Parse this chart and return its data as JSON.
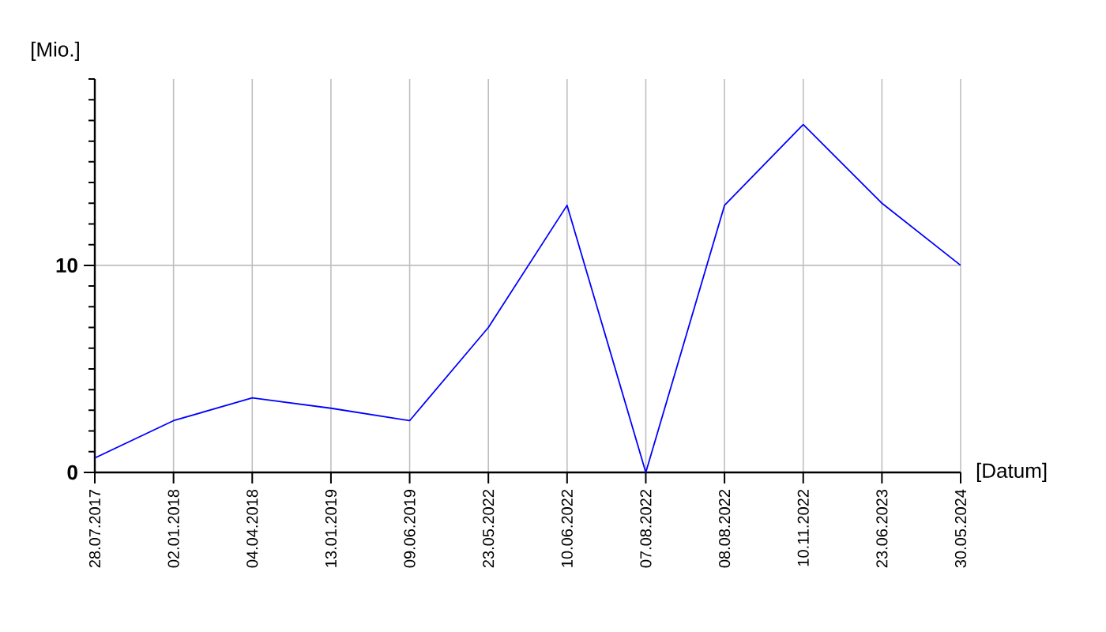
{
  "chart_data": {
    "type": "line",
    "xlabel": "[Datum]",
    "ylabel": "[Mio.]",
    "categories": [
      "28.07.2017",
      "02.01.2018",
      "04.04.2018",
      "13.01.2019",
      "09.06.2019",
      "23.05.2022",
      "10.06.2022",
      "07.08.2022",
      "08.08.2022",
      "10.11.2022",
      "23.06.2023",
      "30.05.2024"
    ],
    "series": [
      {
        "color": "#0000ff",
        "values": [
          0.7,
          2.5,
          3.6,
          3.1,
          2.5,
          7.0,
          12.9,
          0,
          12.9,
          16.8,
          13.0,
          10.0
        ]
      }
    ],
    "ylim": [
      0,
      19
    ],
    "yticks": [
      0,
      10
    ],
    "grid": true,
    "marker": "none",
    "line_style": "solid"
  }
}
